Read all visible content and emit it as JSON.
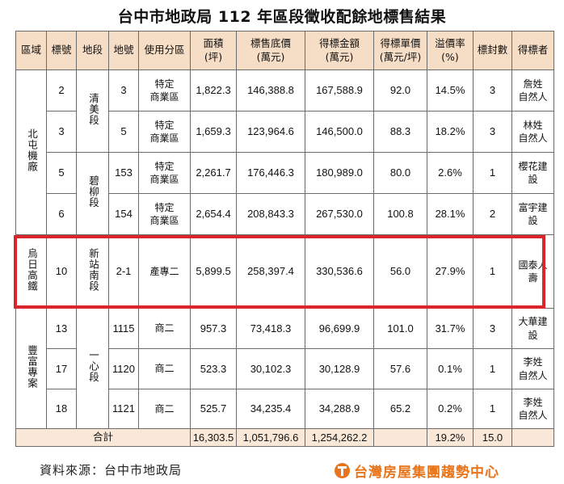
{
  "title": "台中市地政局 112 年區段徵收配餘地標售結果",
  "headers": {
    "region": "區域",
    "number": "標號",
    "section": "地段",
    "lot": "地號",
    "zoning": "使用分區",
    "area": [
      "面積",
      "(坪)"
    ],
    "base_price": [
      "標售底價",
      "(萬元)"
    ],
    "winning_amount": [
      "得標金額",
      "(萬元)"
    ],
    "unit_price": [
      "得標單價",
      "(萬元/坪)"
    ],
    "premium": [
      "溢價率",
      "(%)"
    ],
    "bids": "標封數",
    "winner": "得標者"
  },
  "groups": {
    "beitun": "北屯機廠",
    "wuri": "烏日高鐵",
    "fengfu": "豐富專案"
  },
  "sections": {
    "qingmei": "清美段",
    "biliu": "碧柳段",
    "xinzhannan": "新站南段",
    "yixin": "一心段"
  },
  "rows": [
    {
      "number": "2",
      "lot": "3",
      "zoning": [
        "特定",
        "商業區"
      ],
      "area": "1,822.3",
      "base_price": "146,388.8",
      "winning_amount": "167,588.9",
      "unit_price": "92.0",
      "premium": "14.5%",
      "bids": "3",
      "winner": [
        "詹姓",
        "自然人"
      ]
    },
    {
      "number": "3",
      "lot": "5",
      "zoning": [
        "特定",
        "商業區"
      ],
      "area": "1,659.3",
      "base_price": "123,964.6",
      "winning_amount": "146,500.0",
      "unit_price": "88.3",
      "premium": "18.2%",
      "bids": "3",
      "winner": [
        "林姓",
        "自然人"
      ]
    },
    {
      "number": "5",
      "lot": "153",
      "zoning": [
        "特定",
        "商業區"
      ],
      "area": "2,261.7",
      "base_price": "176,446.3",
      "winning_amount": "180,989.0",
      "unit_price": "80.0",
      "premium": "2.6%",
      "bids": "1",
      "winner": [
        "櫻花建",
        "設"
      ]
    },
    {
      "number": "6",
      "lot": "154",
      "zoning": [
        "特定",
        "商業區"
      ],
      "area": "2,654.4",
      "base_price": "208,843.3",
      "winning_amount": "267,530.0",
      "unit_price": "100.8",
      "premium": "28.1%",
      "bids": "2",
      "winner": [
        "富宇建",
        "設"
      ]
    },
    {
      "number": "10",
      "lot": "2-1",
      "zoning": [
        "產專二"
      ],
      "area": "5,899.5",
      "base_price": "258,397.4",
      "winning_amount": "330,536.6",
      "unit_price": "56.0",
      "premium": "27.9%",
      "bids": "1",
      "winner": [
        "國泰人",
        "壽"
      ]
    },
    {
      "number": "13",
      "lot": "1115",
      "zoning": [
        "商二"
      ],
      "area": "957.3",
      "base_price": "73,418.3",
      "winning_amount": "96,699.9",
      "unit_price": "101.0",
      "premium": "31.7%",
      "bids": "3",
      "winner": [
        "大華建",
        "設"
      ]
    },
    {
      "number": "17",
      "lot": "1120",
      "zoning": [
        "商二"
      ],
      "area": "523.3",
      "base_price": "30,102.3",
      "winning_amount": "30,128.9",
      "unit_price": "57.6",
      "premium": "0.1%",
      "bids": "1",
      "winner": [
        "李姓",
        "自然人"
      ]
    },
    {
      "number": "18",
      "lot": "1121",
      "zoning": [
        "商二"
      ],
      "area": "525.7",
      "base_price": "34,235.4",
      "winning_amount": "34,288.9",
      "unit_price": "65.2",
      "premium": "0.2%",
      "bids": "1",
      "winner": [
        "李姓",
        "自然人"
      ]
    }
  ],
  "total": {
    "label": "合計",
    "area": "16,303.5",
    "base_price": "1,051,796.6",
    "winning_amount": "1,254,262.2",
    "premium": "19.2%",
    "bids": "15.0"
  },
  "source": "資料來源：台中市地政局",
  "logo_text": "台灣房屋集團趨勢中心",
  "colors": {
    "header_bg": "#f6ddc6",
    "total_bg": "#f9e8d8",
    "highlight": "#d9262a",
    "logo": "#e8741c"
  }
}
